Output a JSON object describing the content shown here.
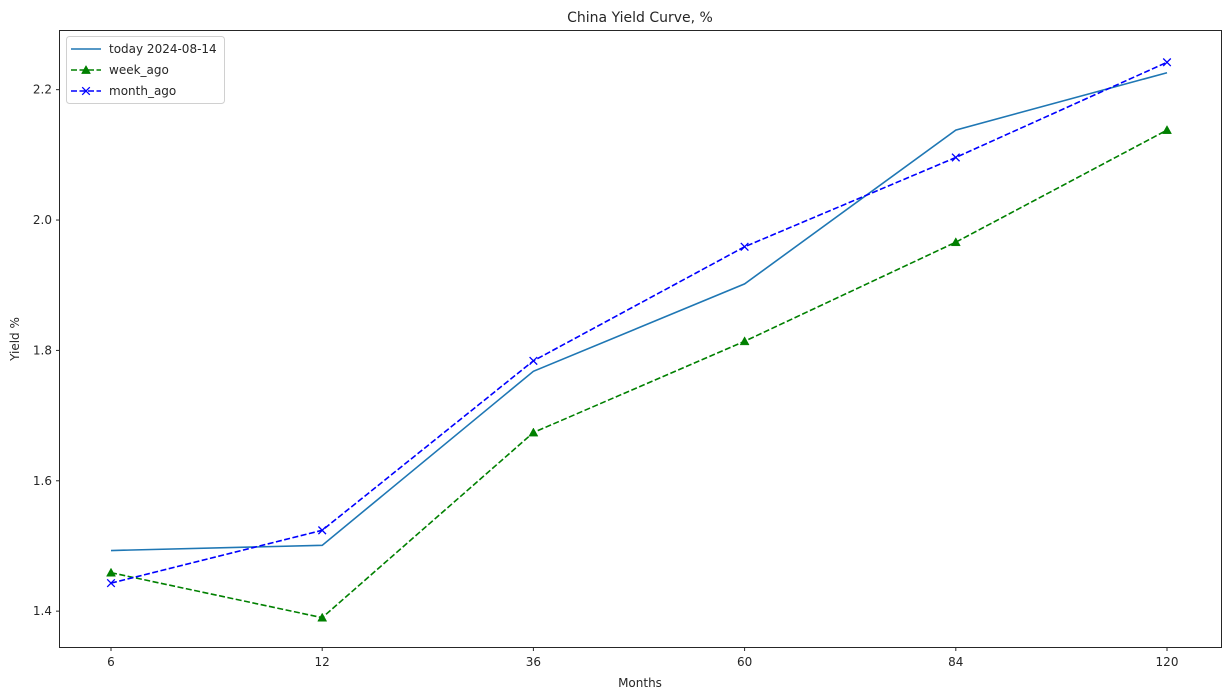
{
  "chart_data": {
    "type": "line",
    "title": "China Yield Curve, %",
    "xlabel": "Months",
    "ylabel": "Yield %",
    "categories": [
      "6",
      "12",
      "36",
      "60",
      "84",
      "120"
    ],
    "ylim": [
      1.345,
      2.29
    ],
    "yticks": [
      1.4,
      1.6,
      1.8,
      2.0,
      2.2
    ],
    "yticks_labels": [
      "1.4",
      "1.6",
      "1.8",
      "2.0",
      "2.2"
    ],
    "grid": false,
    "legend_position": "top-left",
    "series": [
      {
        "name": "today 2024-08-14",
        "values": [
          1.493,
          1.501,
          1.768,
          1.902,
          2.138,
          2.226
        ],
        "color": "#1f77b4",
        "linestyle": "solid",
        "marker": "none"
      },
      {
        "name": "week_ago",
        "values": [
          1.459,
          1.39,
          1.674,
          1.814,
          1.966,
          2.138
        ],
        "color": "#008000",
        "linestyle": "dashed",
        "marker": "triangle"
      },
      {
        "name": "month_ago",
        "values": [
          1.443,
          1.524,
          1.784,
          1.959,
          2.096,
          2.242
        ],
        "color": "#0000ff",
        "linestyle": "dashed",
        "marker": "x"
      }
    ]
  }
}
